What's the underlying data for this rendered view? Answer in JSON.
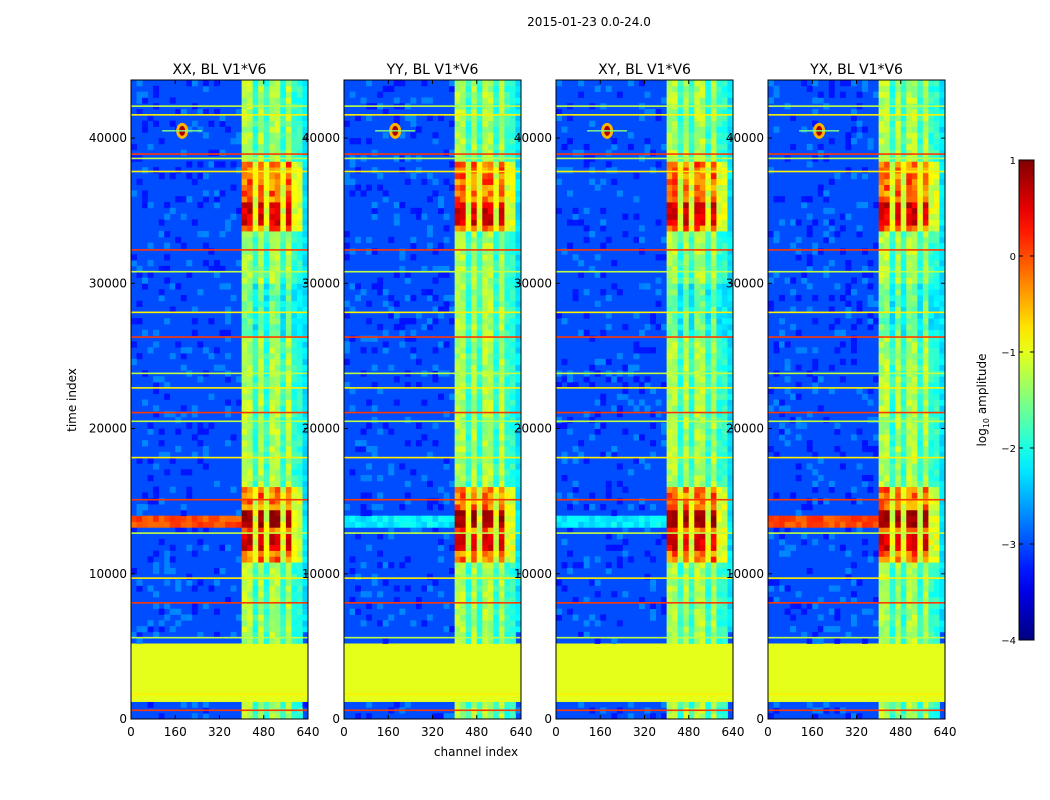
{
  "chart_data": {
    "type": "heatmap",
    "suptitle": "2015-01-23 0.0-24.0",
    "xlabel": "channel index",
    "ylabel": "time index",
    "xlim": [
      0,
      640
    ],
    "ylim": [
      0,
      44000
    ],
    "xticks": [
      0,
      160,
      320,
      480,
      640
    ],
    "yticks": [
      0,
      10000,
      20000,
      30000,
      40000
    ],
    "panels": [
      {
        "title": "XX, BL V1*V6",
        "pol": "XX"
      },
      {
        "title": "YY, BL V1*V6",
        "pol": "YY"
      },
      {
        "title": "XY, BL V1*V6",
        "pol": "XY"
      },
      {
        "title": "YX, BL V1*V6",
        "pol": "YX"
      }
    ],
    "colorbar": {
      "label_main": "log",
      "label_sub": "10",
      "label_tail": " amplitude",
      "range": [
        -4,
        1
      ],
      "ticks": [
        1,
        0,
        -1,
        -2,
        -3,
        -4
      ],
      "tick_labels": [
        "1",
        "0",
        "−1",
        "−2",
        "−3",
        "−4"
      ],
      "colormap": "jet"
    },
    "features": {
      "flagged_time_block": [
        1400,
        5000
      ],
      "flagged_value": -1.0,
      "background_level": -3.0,
      "strong_band_channels": [
        410,
        610
      ],
      "strong_channel_columns": [
        420,
        470,
        520,
        570
      ],
      "bright_time_blocks": [
        [
          33500,
          38500
        ],
        [
          11000,
          16000
        ]
      ],
      "source_point": {
        "channel": 185,
        "time": 40500
      },
      "horizontal_rfi_rows": [
        600,
        1700,
        5600,
        8000,
        9700,
        12800,
        15100,
        18000,
        20500,
        21100,
        22800,
        23800,
        26300,
        28000,
        30800,
        32300,
        37700,
        38600,
        38900,
        41600,
        42200
      ]
    }
  }
}
